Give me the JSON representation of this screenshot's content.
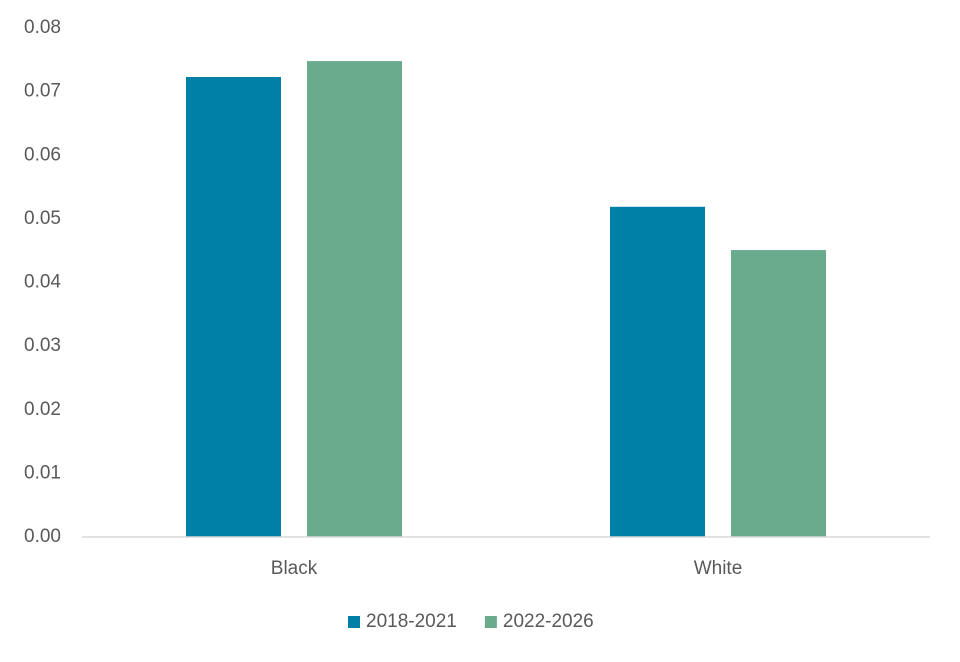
{
  "chart_data": {
    "type": "bar",
    "categories": [
      "Black",
      "White"
    ],
    "series": [
      {
        "name": "2018-2021",
        "color": "#0080a6",
        "values": [
          0.0723,
          0.0519
        ]
      },
      {
        "name": "2022-2026",
        "color": "#6aab8e",
        "values": [
          0.0748,
          0.0451
        ]
      }
    ],
    "ylim": [
      0,
      0.08
    ],
    "yticks": [
      {
        "value": 0,
        "label": "0.00"
      },
      0.01,
      0.02,
      0.03,
      0.04,
      0.05,
      0.06,
      0.07,
      0.08
    ],
    "grid": false,
    "legend": "bottom"
  }
}
